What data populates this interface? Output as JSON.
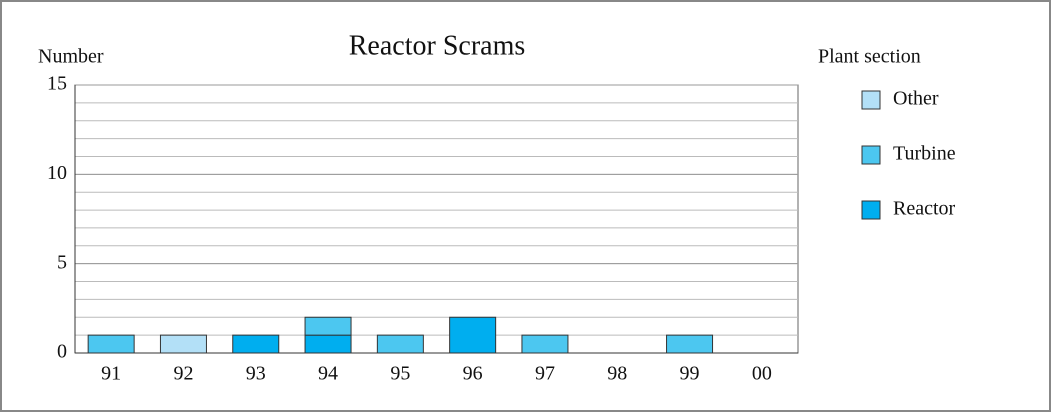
{
  "chart_data": {
    "type": "stacked_bar",
    "title": "Reactor Scrams",
    "y_label": "Number",
    "legend_title": "Plant section",
    "legend": "right",
    "categories": [
      "91",
      "92",
      "93",
      "94",
      "95",
      "96",
      "97",
      "98",
      "99",
      "00"
    ],
    "series": [
      {
        "name": "Reactor",
        "color": "#00aeef",
        "values": [
          0,
          0,
          1,
          1,
          0,
          2,
          0,
          0,
          0,
          0
        ]
      },
      {
        "name": "Turbine",
        "color": "#4cc7f0",
        "values": [
          1,
          0,
          0,
          1,
          1,
          0,
          1,
          0,
          1,
          0
        ]
      },
      {
        "name": "Other",
        "color": "#b3e0f7",
        "values": [
          0,
          1,
          0,
          0,
          0,
          0,
          0,
          0,
          0,
          0
        ]
      }
    ],
    "ylim": [
      0,
      15
    ],
    "yticks": [
      0,
      5,
      10,
      15
    ],
    "grid": true
  }
}
